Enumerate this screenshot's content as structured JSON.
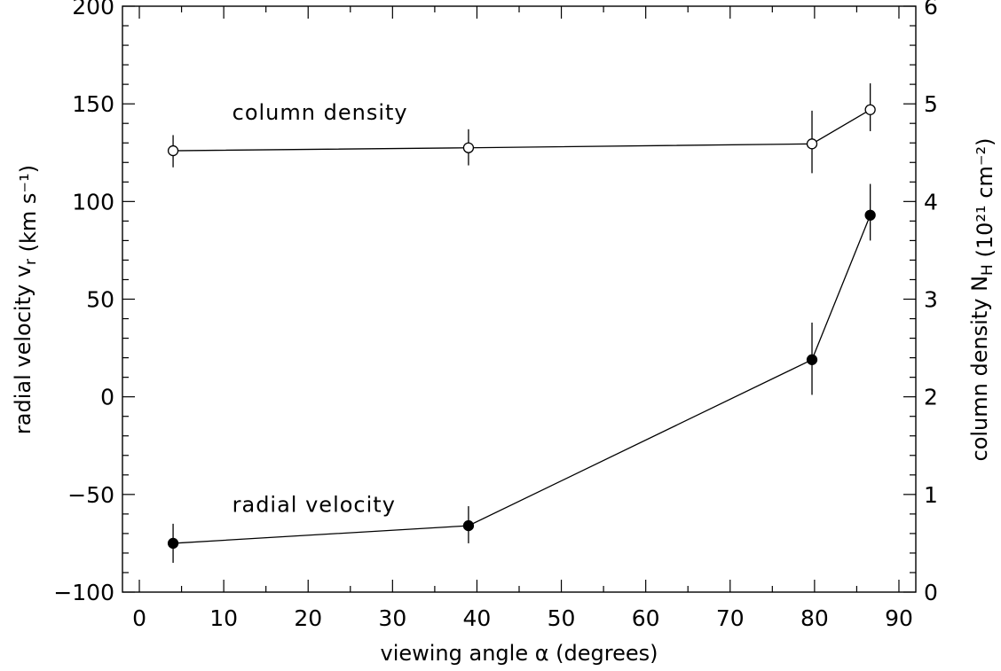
{
  "chart_data": {
    "type": "line",
    "xlabel": "viewing angle α (degrees)",
    "ylabel_left": "radial velocity v_r (km s⁻¹)",
    "ylabel_right": "column density N_H (10²¹ cm⁻²)",
    "xlim": [
      -2,
      92
    ],
    "ylim_left": [
      -100,
      200
    ],
    "ylim_right": [
      0,
      6
    ],
    "x_ticks": [
      0,
      10,
      20,
      30,
      40,
      50,
      60,
      70,
      80,
      90
    ],
    "y_ticks_left": [
      -100,
      -50,
      0,
      50,
      100,
      150,
      200
    ],
    "y_ticks_right": [
      0,
      1,
      2,
      3,
      4,
      5,
      6
    ],
    "series": [
      {
        "name": "column density",
        "axis": "right",
        "marker": "open-circle",
        "x": [
          4,
          39,
          79.7,
          86.6
        ],
        "y": [
          4.52,
          4.55,
          4.59,
          4.94
        ],
        "err_low": [
          4.35,
          4.37,
          4.29,
          4.72
        ],
        "err_high": [
          4.68,
          4.74,
          4.93,
          5.21
        ]
      },
      {
        "name": "radial velocity",
        "axis": "left",
        "marker": "filled-circle",
        "x": [
          4,
          39,
          79.7,
          86.6
        ],
        "y": [
          -75,
          -66,
          19,
          93
        ],
        "err_low": [
          -85,
          -75,
          1,
          80
        ],
        "err_high": [
          -65,
          -56,
          38,
          109
        ]
      }
    ],
    "annotations": [
      {
        "text": "column density",
        "x": 11,
        "y_left": 142
      },
      {
        "text": "radial velocity",
        "x": 11,
        "y_left": -59
      }
    ]
  }
}
